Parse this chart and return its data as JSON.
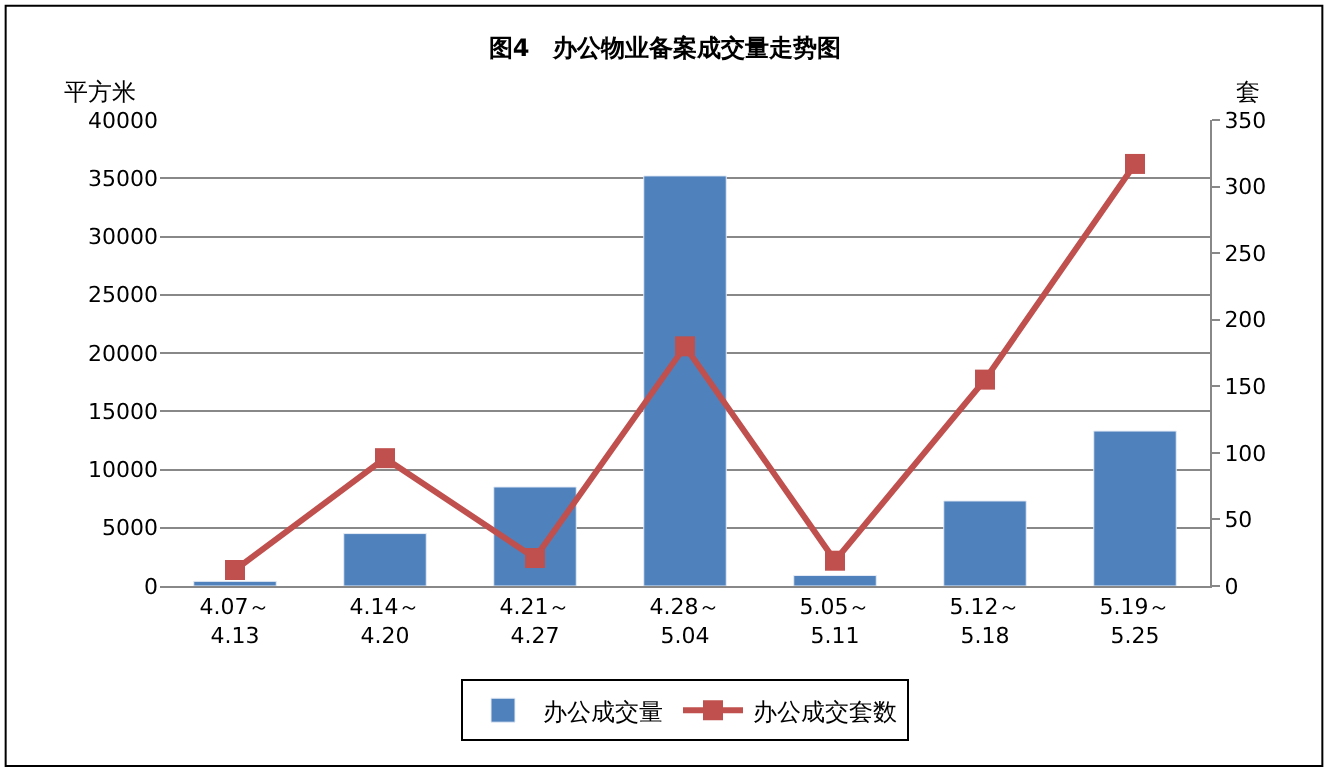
{
  "chart_data": {
    "type": "bar",
    "title": "图4　办公物业备案成交量走势图",
    "ylabel": "平方米",
    "y2label": "套",
    "categories": [
      "4.07～\n4.13",
      "4.14～\n4.20",
      "4.21～\n4.27",
      "4.28～\n5.04",
      "5.05～\n5.11",
      "5.12～\n5.18",
      "5.19～\n5.25"
    ],
    "series": [
      {
        "name": "办公成交量",
        "color": "#4f81bd",
        "values": [
          400,
          4500,
          8500,
          35200,
          900,
          7300,
          13300
        ]
      },
      {
        "name": "办公成交套数",
        "type": "line",
        "axis": "y2",
        "color": "#c0504d",
        "marker": "square",
        "values": [
          12,
          96,
          21,
          180,
          19,
          155,
          317
        ]
      }
    ],
    "ylim": [
      0,
      40000
    ],
    "yticks": [
      0,
      5000,
      10000,
      15000,
      20000,
      25000,
      30000,
      35000,
      40000
    ],
    "y2lim": [
      0,
      350
    ],
    "y2ticks": [
      0,
      50,
      100,
      150,
      200,
      250,
      300,
      350
    ],
    "grid": "y",
    "legend": "bottom"
  }
}
